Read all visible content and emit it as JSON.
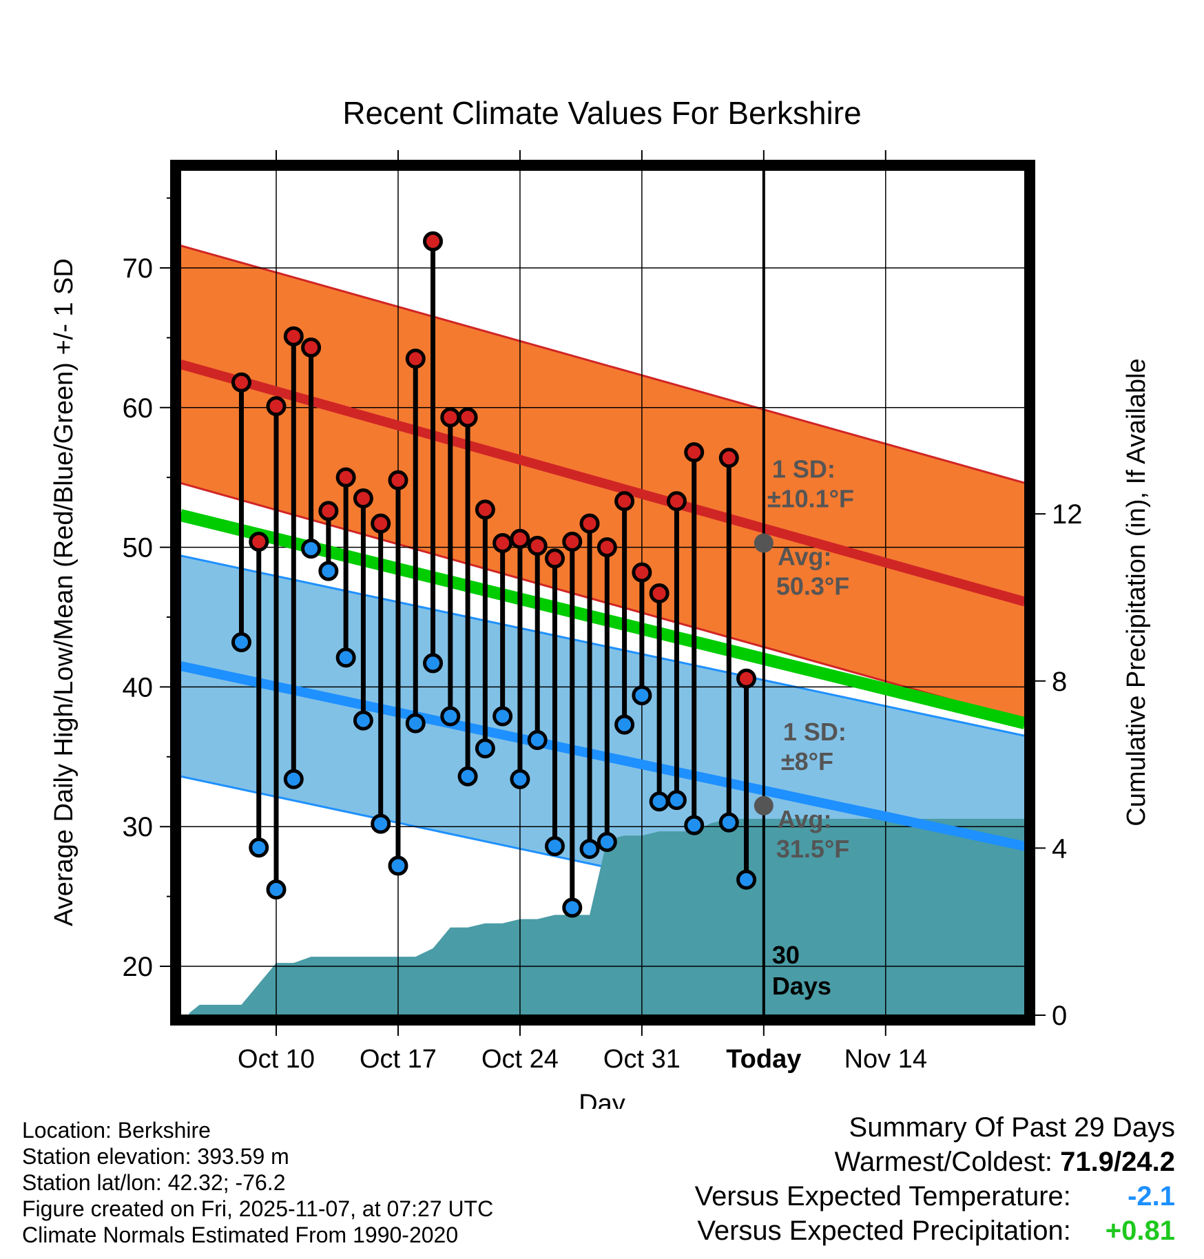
{
  "chart_data": {
    "type": "line",
    "title": "Recent Climate Values For Berkshire",
    "xlabel": "Day",
    "ylabel": "Average Daily High/Low/Mean (Red/Blue/Green) +/- 1 SD",
    "y2label": "Cumulative Precipitation (in), If Available",
    "ylim": [
      16.5,
      77
    ],
    "y2lim": [
      0,
      20.23
    ],
    "xlim": [
      -3.5,
      45
    ],
    "x_origin": "Oct 8",
    "y_ticks": [
      "20",
      "30",
      "40",
      "50",
      "60",
      "70"
    ],
    "y2_ticks": [
      "0",
      "4",
      "8",
      "12"
    ],
    "x_ticks": [
      {
        "day": 2,
        "label": "Oct 10"
      },
      {
        "day": 9,
        "label": "Oct 17"
      },
      {
        "day": 16,
        "label": "Oct 24"
      },
      {
        "day": 23,
        "label": "Oct 31"
      },
      {
        "day": 30,
        "label": "Today"
      },
      {
        "day": 37,
        "label": "Nov 14"
      }
    ],
    "today_day": 30,
    "normals": {
      "high_avg": {
        "start": 63.1,
        "end": 46.1
      },
      "high_sd": 8.5,
      "low_avg": {
        "start": 41.5,
        "end": 28.6
      },
      "low_sd": 7.9,
      "mean": {
        "start": 52.3,
        "end": 37.4
      }
    },
    "days": [
      0,
      1,
      2,
      3,
      4,
      5,
      6,
      7,
      8,
      9,
      10,
      11,
      12,
      13,
      14,
      15,
      16,
      17,
      18,
      19,
      20,
      21,
      22,
      23,
      24,
      25,
      26,
      28,
      29
    ],
    "highs": [
      61.8,
      50.4,
      60.1,
      65.1,
      64.3,
      52.6,
      55.0,
      53.5,
      51.7,
      54.8,
      63.5,
      71.9,
      59.3,
      59.3,
      52.7,
      50.3,
      50.6,
      50.1,
      49.2,
      50.4,
      51.7,
      50.0,
      53.3,
      48.2,
      46.7,
      53.3,
      56.8,
      56.4,
      40.6
    ],
    "lows": [
      43.2,
      28.5,
      25.5,
      33.4,
      49.9,
      48.3,
      42.1,
      37.6,
      30.2,
      27.2,
      37.4,
      41.7,
      37.9,
      33.6,
      35.6,
      37.9,
      33.4,
      36.2,
      28.6,
      24.2,
      28.4,
      28.9,
      37.3,
      39.4,
      31.8,
      31.9,
      30.1,
      30.3,
      26.2
    ],
    "precip": {
      "days": [
        -3,
        -2.4,
        0,
        1,
        2,
        3,
        4,
        5,
        6,
        7,
        8,
        9,
        10,
        11,
        12,
        13,
        14,
        15,
        16,
        17,
        18,
        19,
        20,
        21,
        22,
        23,
        24,
        25,
        26,
        27,
        28,
        29,
        30,
        45
      ],
      "values": [
        0.05,
        0.25,
        0.25,
        0.75,
        1.25,
        1.25,
        1.4,
        1.4,
        1.4,
        1.4,
        1.4,
        1.4,
        1.4,
        1.6,
        2.1,
        2.1,
        2.2,
        2.2,
        2.3,
        2.3,
        2.4,
        2.4,
        2.4,
        4.2,
        4.3,
        4.3,
        4.4,
        4.4,
        4.4,
        4.6,
        4.7,
        4.7,
        4.7,
        4.7
      ]
    },
    "annotations": {
      "high_sd_label": "1 SD:",
      "high_sd_value": "±10.1°F",
      "high_avg_label": "Avg:",
      "high_avg_value": "50.3°F",
      "low_sd_label": "1 SD:",
      "low_sd_value": "±8°F",
      "low_avg_label": "Avg:",
      "low_avg_value": "31.5°F",
      "days_number": "30",
      "days_word": "Days",
      "high_avg_today": 50.3,
      "low_avg_today": 31.5
    },
    "colors": {
      "high_band": "#f47a30",
      "high_line": "#d02525",
      "low_band": "#82c1e6",
      "low_line": "#1e90ff",
      "mean_line": "#00cc00",
      "precip_fill": "#4a9ca6",
      "high_dot": "#d42020",
      "low_dot": "#2090f0",
      "annotation": "#555555"
    }
  },
  "info": {
    "location": "Location: Berkshire",
    "elevation": "Station elevation: 393.59 m",
    "latlon": "Station lat/lon: 42.32; -76.2",
    "created": "Figure created on Fri, 2025-11-07, at 07:27 UTC",
    "normals": "Climate Normals Estimated From 1990-2020"
  },
  "summary": {
    "title": "Summary Of Past 29 Days",
    "warmest_label": "Warmest/Coldest:",
    "warmest_value": "71.9/24.2",
    "temp_label": "Versus Expected Temperature:",
    "temp_value": "-2.1",
    "precip_label": "Versus Expected Precipitation:",
    "precip_value": "+0.81"
  }
}
